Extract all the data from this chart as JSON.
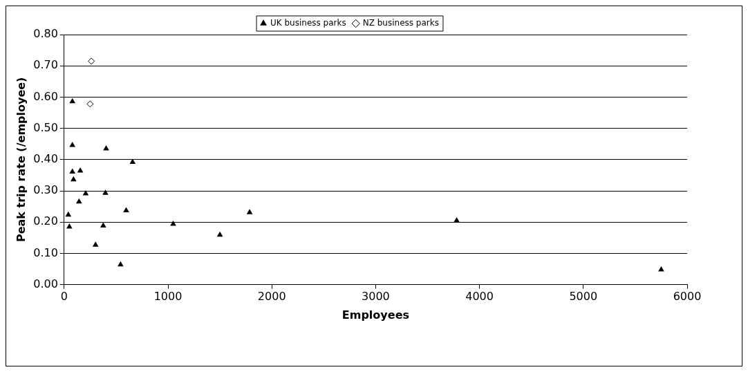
{
  "chart_data": {
    "type": "scatter",
    "xlabel": "Employees",
    "ylabel": "Peak trip rate (/employee)",
    "xlim": [
      0,
      6000
    ],
    "xticks": [
      0,
      1000,
      2000,
      3000,
      4000,
      5000,
      6000
    ],
    "ylim": [
      0,
      0.8
    ],
    "yticks": [
      {
        "value": 0,
        "label": "0.00"
      },
      {
        "value": 0.1,
        "label": "0.10"
      },
      {
        "value": 0.2,
        "label": "0.20"
      },
      {
        "value": 0.3,
        "label": "0.30"
      },
      {
        "value": 0.4,
        "label": "0.40"
      },
      {
        "value": 0.5,
        "label": "0.50"
      },
      {
        "value": 0.6,
        "label": "0.60"
      },
      {
        "value": 0.7,
        "label": "0.70"
      },
      {
        "value": 0.8,
        "label": "0.80"
      }
    ],
    "grid": "y",
    "legend": "top",
    "series": [
      {
        "name": "UK business parks",
        "color": "#000000",
        "marker": "triangle",
        "x": [
          79,
          79,
          404,
          659,
          79,
          155,
          90,
          207,
          397,
          143,
          40,
          50,
          376,
          597,
          1050,
          302,
          543,
          1500,
          1786,
          3780,
          5750
        ],
        "values": [
          0.586,
          0.446,
          0.435,
          0.392,
          0.361,
          0.364,
          0.336,
          0.291,
          0.293,
          0.265,
          0.223,
          0.185,
          0.188,
          0.237,
          0.194,
          0.127,
          0.064,
          0.159,
          0.231,
          0.205,
          0.048
        ]
      },
      {
        "name": "NZ business parks",
        "color": "#000000",
        "marker": "diamond",
        "x": [
          262,
          250
        ],
        "values": [
          0.715,
          0.578
        ]
      }
    ]
  }
}
